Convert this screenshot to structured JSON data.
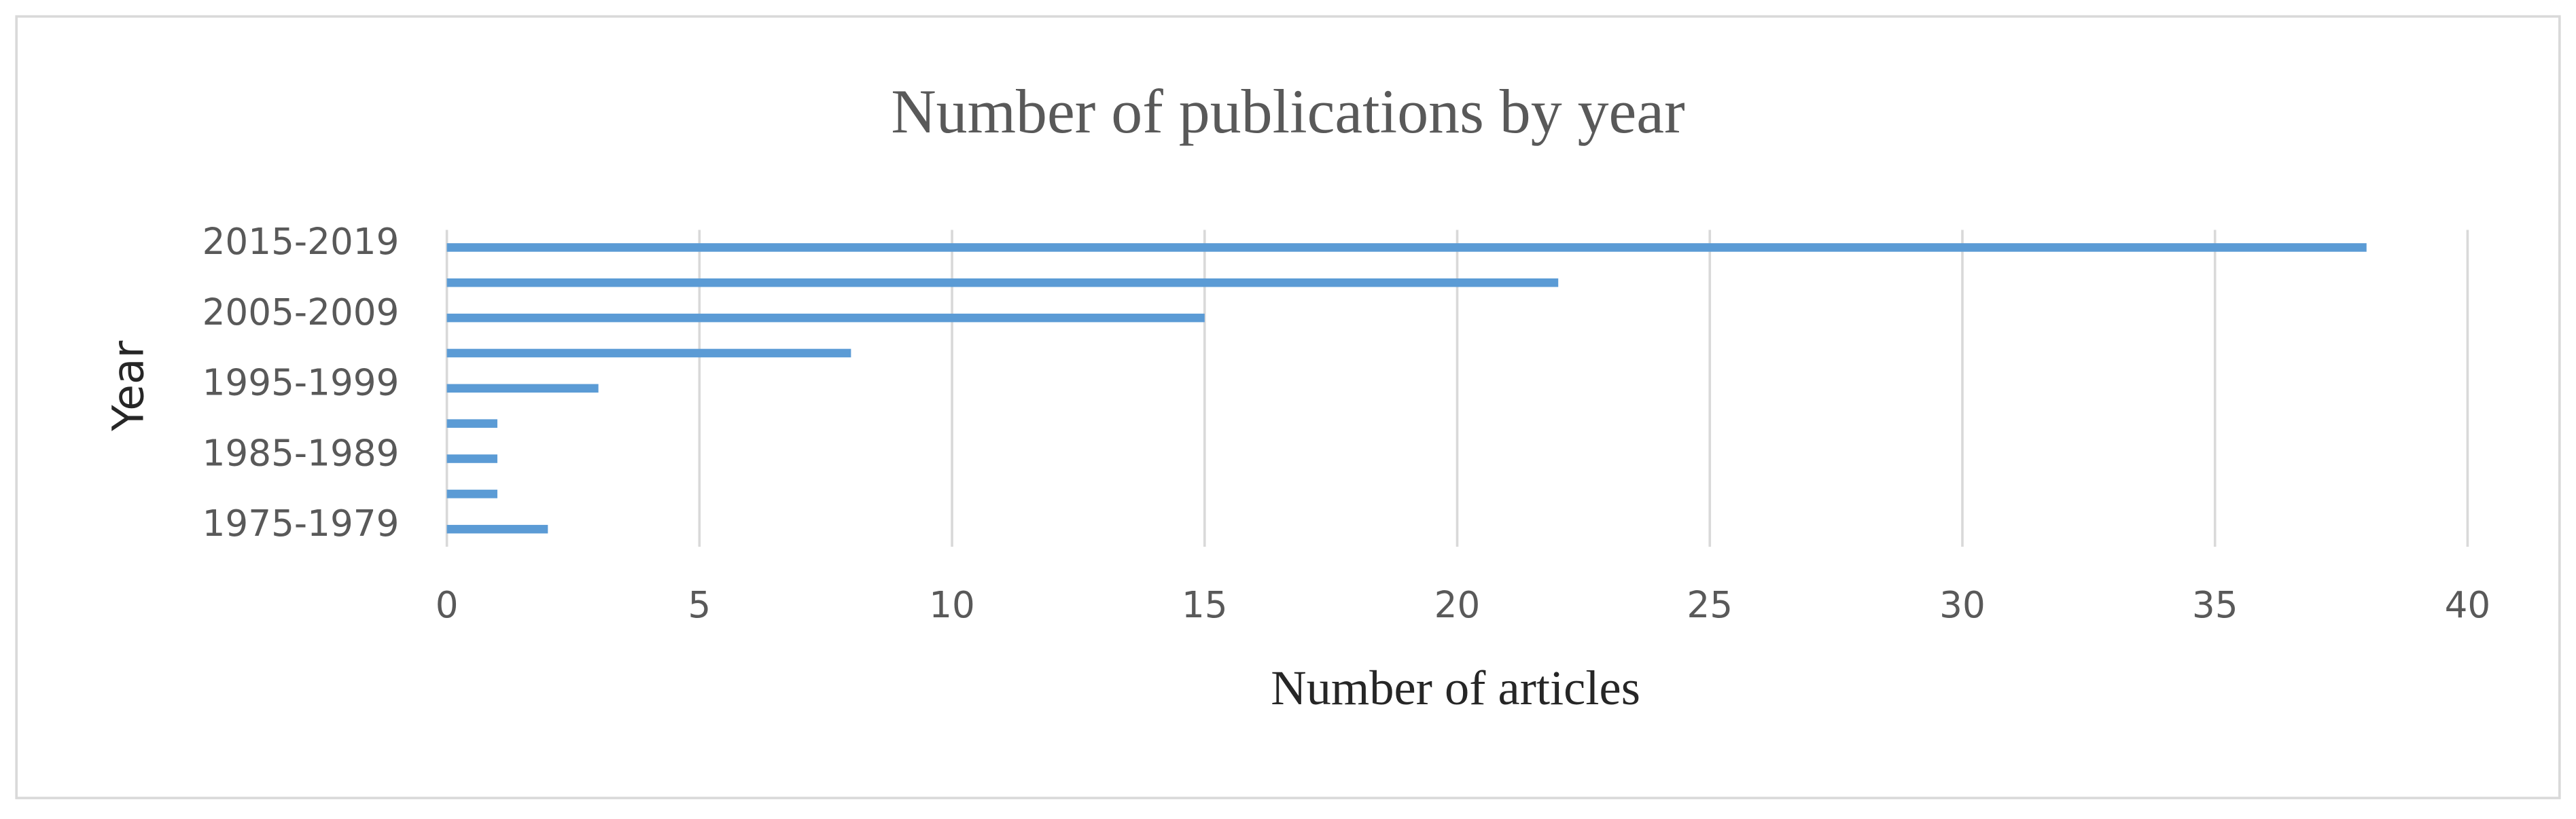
{
  "chart_data": {
    "type": "bar",
    "orientation": "horizontal",
    "title": "Number of publications by year",
    "x_label": "Number of articles",
    "y_label": "Year",
    "categories": [
      "1975-1979",
      null,
      "1985-1989",
      null,
      "1995-1999",
      null,
      "2005-2009",
      null,
      "2015-2019"
    ],
    "values": [
      2,
      1,
      1,
      1,
      3,
      8,
      15,
      22,
      38
    ],
    "color": "#5b9bd5",
    "xlim": [
      0,
      40
    ],
    "xticks": [
      0,
      5,
      10,
      15,
      20,
      25,
      30,
      35,
      40
    ],
    "grid": true
  }
}
